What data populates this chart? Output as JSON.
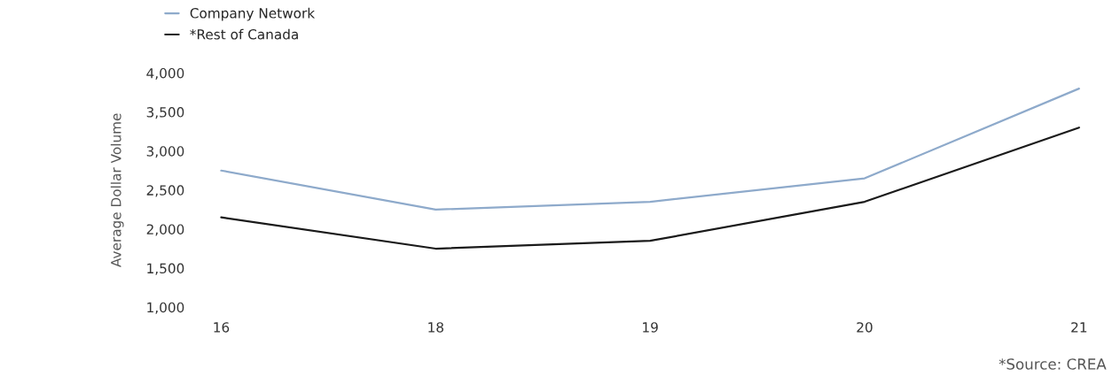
{
  "chart_data": {
    "type": "line",
    "categories": [
      "16",
      "18",
      "19",
      "20",
      "21"
    ],
    "series": [
      {
        "name": "Company Network",
        "color": "#8eaacb",
        "values": [
          2750,
          2250,
          2350,
          2650,
          3800
        ]
      },
      {
        "name": "*Rest of Canada",
        "color": "#1a1a1a",
        "values": [
          2150,
          1750,
          1850,
          2350,
          3300
        ]
      }
    ],
    "ylabel": "Average Dollar Volume",
    "ylim": [
      1000,
      4000
    ],
    "yticks": [
      {
        "value": 1000,
        "label": "1,000"
      },
      {
        "value": 1500,
        "label": "1,500"
      },
      {
        "value": 2000,
        "label": "2,000"
      },
      {
        "value": 2500,
        "label": "2,500"
      },
      {
        "value": 3000,
        "label": "3,000"
      },
      {
        "value": 3500,
        "label": "3,500"
      },
      {
        "value": 4000,
        "label": "4,000"
      }
    ],
    "grid": false,
    "legend": "top left",
    "annotations": [
      "*Source: CREA"
    ]
  }
}
